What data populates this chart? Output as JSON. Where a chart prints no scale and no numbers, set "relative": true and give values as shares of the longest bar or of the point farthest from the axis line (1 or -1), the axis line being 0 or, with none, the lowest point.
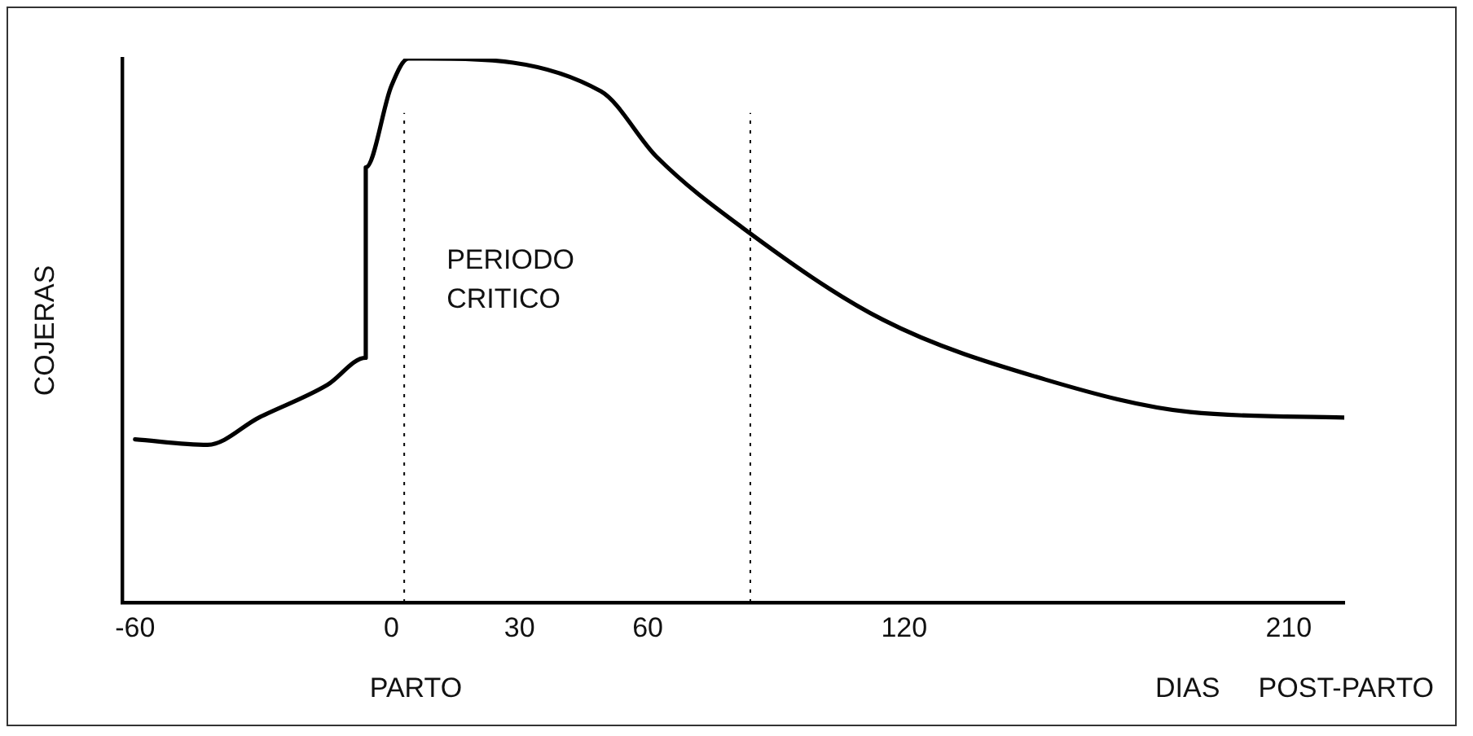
{
  "chart_data": {
    "type": "line",
    "relative": true,
    "ylabel": "COJERAS",
    "xlabel": "DIAS     POST-PARTO",
    "xlim": [
      -63,
      223
    ],
    "xticks": [
      -60,
      0,
      30,
      60,
      120,
      210
    ],
    "series": [
      {
        "color": "#000000",
        "x": [
          -60,
          -43,
          -31,
          -15,
          -6,
          -6,
          0,
          4,
          8,
          49,
          62,
          82,
          115,
          153,
          187,
          223
        ],
        "values": [
          0.3,
          0.29,
          0.34,
          0.4,
          0.45,
          0.8,
          0.95,
          1.0,
          1.0,
          0.94,
          0.82,
          0.69,
          0.52,
          0.41,
          0.35,
          0.34
        ]
      }
    ],
    "ref_lines": [
      {
        "axis": "x",
        "value": 3,
        "label": null,
        "line_style": "dotted",
        "color": "#000000"
      },
      {
        "axis": "x",
        "value": 84,
        "label": null,
        "line_style": "dotted",
        "color": "#000000"
      }
    ],
    "annotations": [
      "PERIODO CRITICO",
      "PARTO"
    ],
    "grid": false,
    "legend": false,
    "marker": "none",
    "line_style": "solid"
  }
}
